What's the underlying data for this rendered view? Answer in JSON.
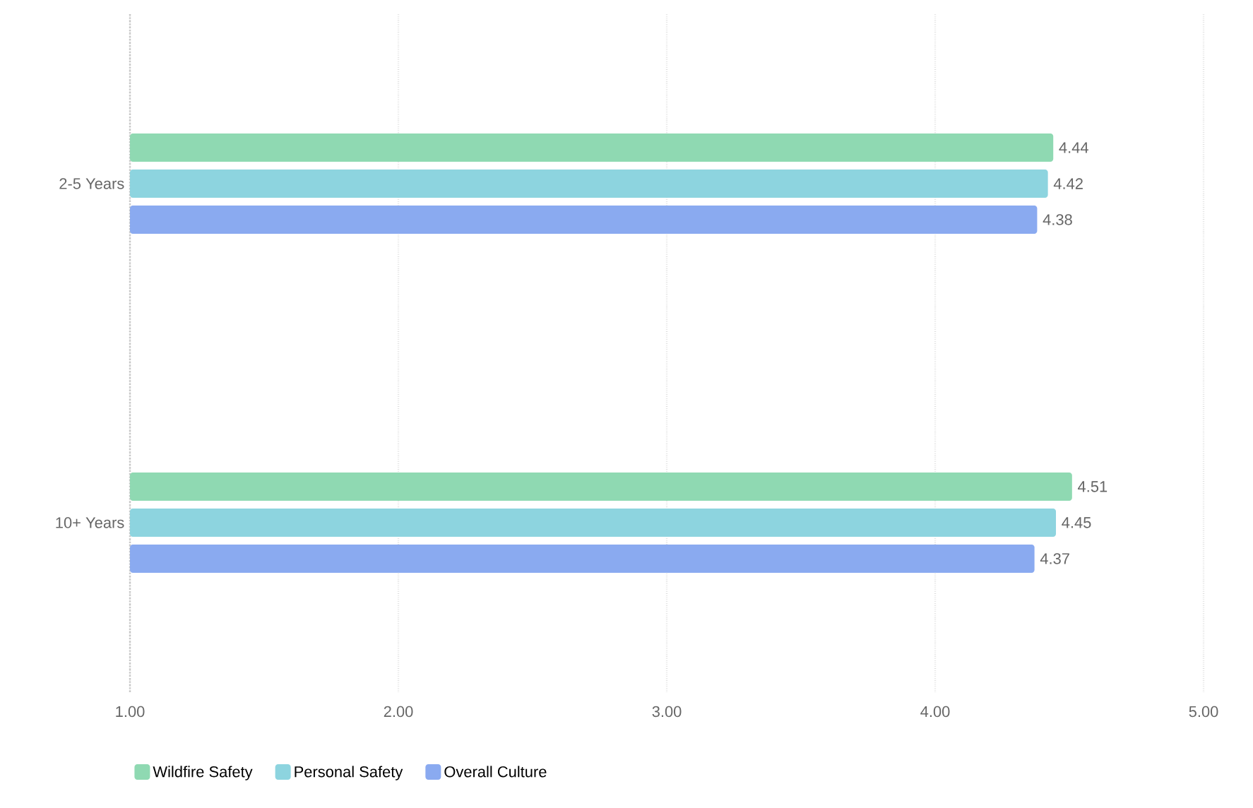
{
  "chart_data": {
    "type": "bar",
    "orientation": "horizontal",
    "categories": [
      "2-5 Years",
      "10+ Years"
    ],
    "series": [
      {
        "name": "Wildfire Safety",
        "color": "#8fd9b2",
        "values": [
          4.44,
          4.51
        ]
      },
      {
        "name": "Personal Safety",
        "color": "#8dd4df",
        "values": [
          4.42,
          4.45
        ]
      },
      {
        "name": "Overall Culture",
        "color": "#8aaaf0",
        "values": [
          4.38,
          4.37
        ]
      }
    ],
    "xlim": [
      1,
      5
    ],
    "xticks": [
      {
        "value": 1,
        "label": "1.00"
      },
      {
        "value": 2,
        "label": "2.00"
      },
      {
        "value": 3,
        "label": "3.00"
      },
      {
        "value": 4,
        "label": "4.00"
      },
      {
        "value": 5,
        "label": "5.00"
      }
    ],
    "grid": "x",
    "legend": "bottom left",
    "data_labels": true
  }
}
